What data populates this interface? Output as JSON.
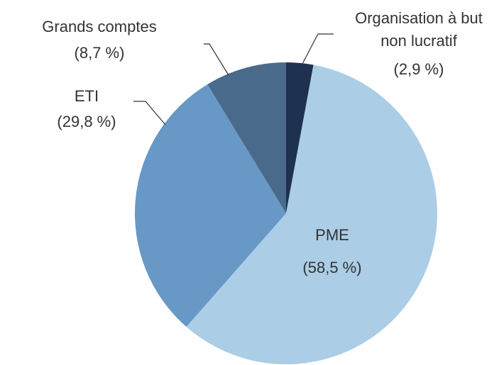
{
  "chart_data": {
    "type": "pie",
    "categories": [
      "Organisation à but non lucratif",
      "PME",
      "ETI",
      "Grands comptes"
    ],
    "values": [
      2.9,
      58.5,
      29.8,
      8.7
    ],
    "value_labels": [
      "(2,9 %)",
      "(58,5 %)",
      "(29,8 %)",
      "(8,7 %)"
    ],
    "colors": [
      "#1f3150",
      "#abcde6",
      "#6898c6",
      "#4a6a8c"
    ]
  }
}
